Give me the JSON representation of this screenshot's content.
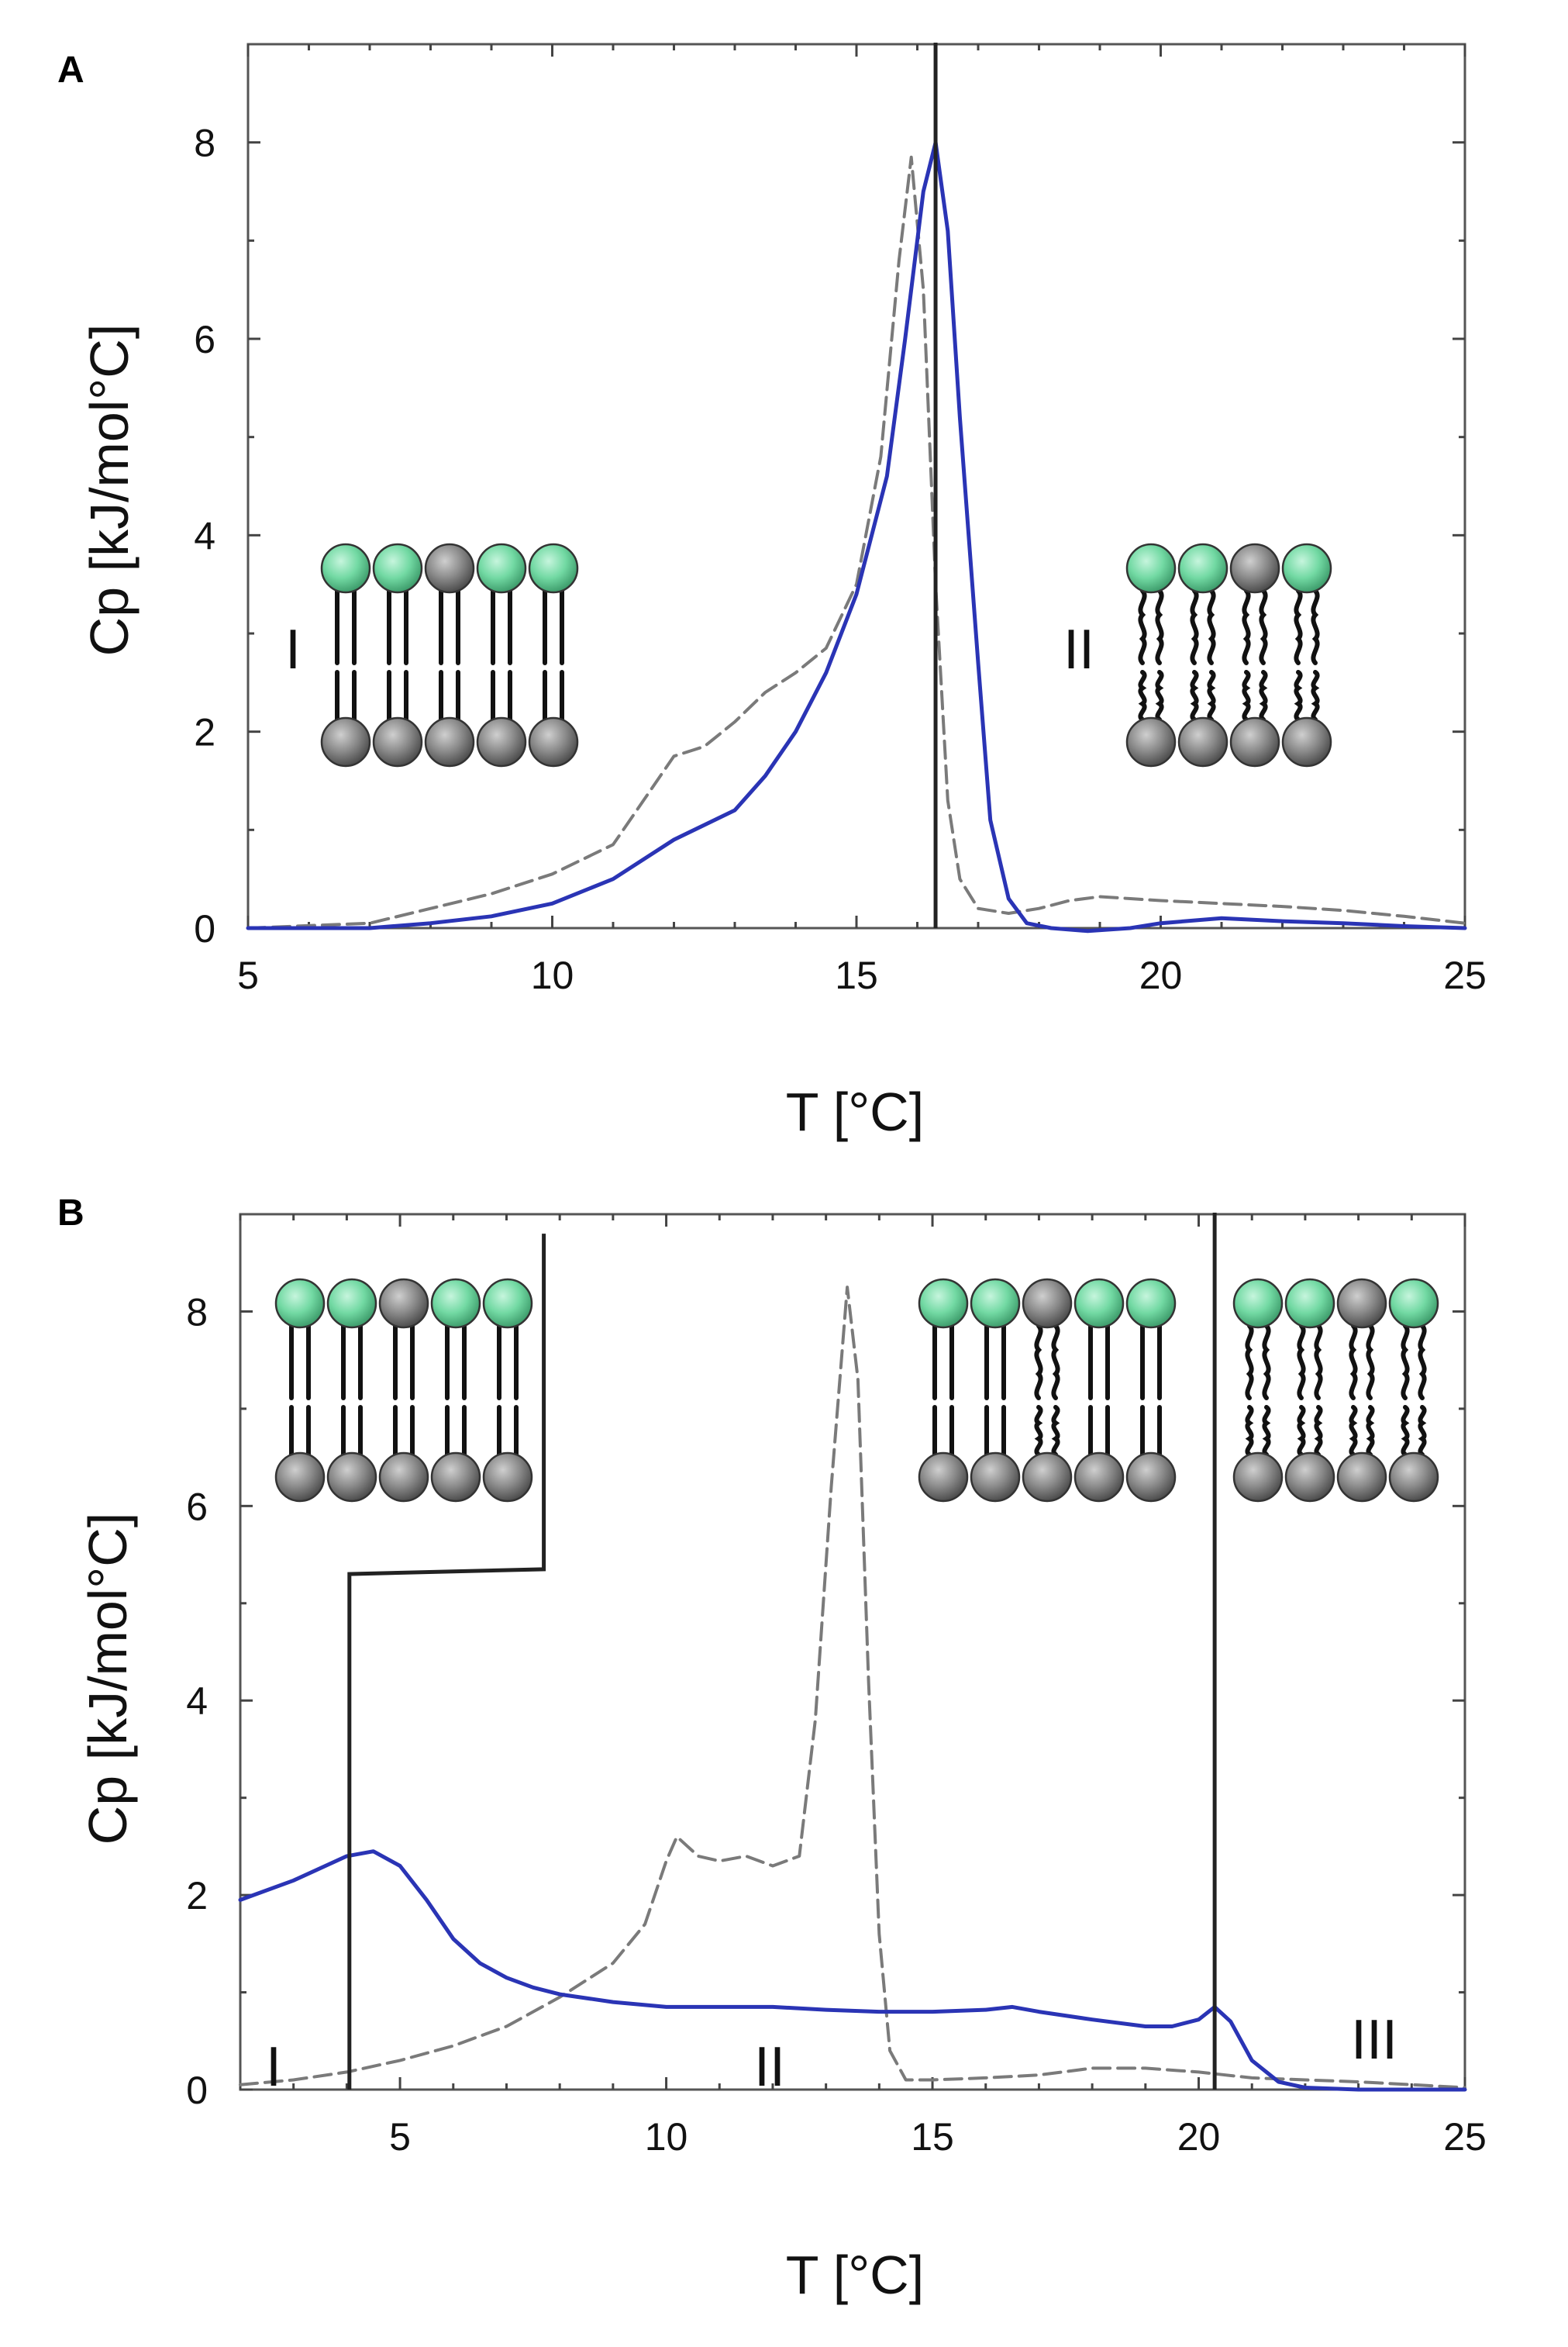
{
  "chart_data": [
    {
      "type": "line",
      "panel": "A",
      "xlabel": "T [°C]",
      "ylabel": "Cp [kJ/mol°C]",
      "xlim": [
        5,
        25
      ],
      "ylim": [
        0,
        9
      ],
      "xticks": [
        "5",
        "10",
        "15",
        "20",
        "25"
      ],
      "yticks": [
        "0",
        "2",
        "4",
        "6",
        "8"
      ],
      "region_labels": [
        "I",
        "II"
      ],
      "vertical_lines": [
        {
          "x": 16.3,
          "name": "transition-line"
        }
      ],
      "series": [
        {
          "name": "dashed-gray",
          "style": "dashed",
          "color": "#7a7a7a",
          "x": [
            5,
            7,
            8,
            9,
            10,
            11,
            11.5,
            12,
            12.5,
            13,
            13.5,
            14,
            14.5,
            15,
            15.4,
            15.7,
            15.9,
            16.1,
            16.3,
            16.5,
            16.7,
            17,
            17.5,
            18,
            18.5,
            19,
            19.5,
            20,
            21,
            22,
            23,
            24,
            25
          ],
          "y": [
            0.0,
            0.05,
            0.2,
            0.35,
            0.55,
            0.85,
            1.3,
            1.75,
            1.85,
            2.1,
            2.4,
            2.6,
            2.85,
            3.5,
            4.8,
            6.8,
            7.85,
            6.5,
            3.5,
            1.3,
            0.5,
            0.2,
            0.15,
            0.2,
            0.28,
            0.32,
            0.3,
            0.28,
            0.25,
            0.22,
            0.18,
            0.12,
            0.05
          ]
        },
        {
          "name": "blue",
          "style": "solid",
          "color": "#2a34b5",
          "x": [
            5,
            7,
            8,
            9,
            10,
            11,
            12,
            13,
            13.5,
            14,
            14.5,
            15,
            15.5,
            15.8,
            16.1,
            16.3,
            16.5,
            16.7,
            17,
            17.2,
            17.5,
            17.8,
            18.2,
            18.8,
            19.5,
            20,
            21,
            22,
            23,
            24,
            25
          ],
          "y": [
            0.0,
            0.0,
            0.05,
            0.12,
            0.25,
            0.5,
            0.9,
            1.2,
            1.55,
            2.0,
            2.6,
            3.4,
            4.6,
            6.0,
            7.5,
            8.0,
            7.1,
            5.2,
            2.7,
            1.1,
            0.3,
            0.05,
            0.0,
            -0.03,
            0.0,
            0.05,
            0.1,
            0.07,
            0.05,
            0.02,
            0.0
          ]
        }
      ]
    },
    {
      "type": "line",
      "panel": "B",
      "xlabel": "T [°C]",
      "ylabel": "Cp [kJ/mol°C]",
      "xlim": [
        2,
        25
      ],
      "ylim": [
        0,
        9
      ],
      "xticks": [
        "5",
        "10",
        "15",
        "20",
        "25"
      ],
      "yticks": [
        "0",
        "2",
        "4",
        "6",
        "8"
      ],
      "region_labels": [
        "I",
        "II",
        "III"
      ],
      "vertical_lines": [
        {
          "x": 20.3,
          "name": "transition-line"
        }
      ],
      "step_line": {
        "x": [
          4.05,
          4.05,
          7.7,
          7.7
        ],
        "y": [
          0,
          5.3,
          5.35,
          8.8
        ]
      },
      "series": [
        {
          "name": "dashed-gray",
          "style": "dashed",
          "color": "#7a7a7a",
          "x": [
            2,
            3,
            4,
            5,
            6,
            7,
            8,
            9,
            9.6,
            10,
            10.2,
            10.6,
            11,
            11.5,
            12,
            12.5,
            12.8,
            13.1,
            13.4,
            13.6,
            13.8,
            14.0,
            14.2,
            14.5,
            15,
            16,
            17,
            18,
            19,
            20,
            21,
            22,
            23,
            24,
            25
          ],
          "y": [
            0.05,
            0.1,
            0.18,
            0.3,
            0.45,
            0.65,
            0.95,
            1.3,
            1.7,
            2.35,
            2.6,
            2.4,
            2.35,
            2.4,
            2.3,
            2.4,
            3.8,
            6.2,
            8.25,
            7.3,
            4.2,
            1.6,
            0.4,
            0.1,
            0.1,
            0.12,
            0.15,
            0.22,
            0.22,
            0.18,
            0.12,
            0.1,
            0.08,
            0.05,
            0.02
          ]
        },
        {
          "name": "blue",
          "style": "solid",
          "color": "#2a34b5",
          "x": [
            2,
            3,
            4,
            4.5,
            5,
            5.5,
            6,
            6.5,
            7,
            7.5,
            8,
            9,
            10,
            11,
            12,
            13,
            14,
            15,
            16,
            16.5,
            17,
            18,
            19,
            19.5,
            20,
            20.3,
            20.6,
            21,
            21.5,
            22,
            23,
            24,
            25
          ],
          "y": [
            1.95,
            2.15,
            2.4,
            2.45,
            2.3,
            1.95,
            1.55,
            1.3,
            1.15,
            1.05,
            0.98,
            0.9,
            0.85,
            0.85,
            0.85,
            0.82,
            0.8,
            0.8,
            0.82,
            0.85,
            0.8,
            0.72,
            0.65,
            0.65,
            0.72,
            0.85,
            0.7,
            0.3,
            0.08,
            0.02,
            0.0,
            0.0,
            0.0
          ]
        }
      ]
    }
  ]
}
